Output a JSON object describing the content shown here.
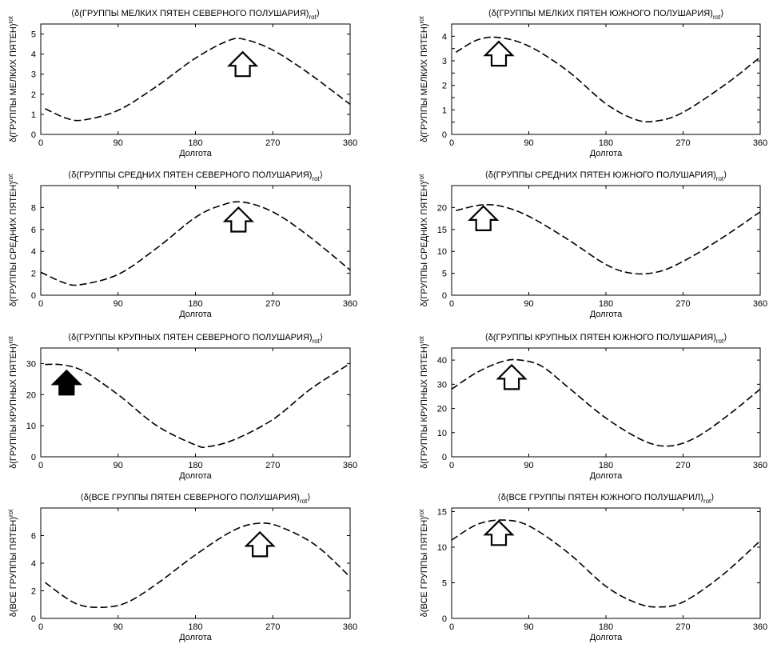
{
  "figure": {
    "xlabel_all": "Долгота"
  },
  "chart_data": [
    {
      "type": "line",
      "title": "⟨δ(ГРУППЫ МЕЛКИХ ПЯТЕН СЕВЕРНОГО ПОЛУШАРИЯ)",
      "title_sub": "rot",
      "xlabel": "Долгота",
      "ylabel": "δ(ГРУППЫ МЕЛКИХ ПЯТЕН)",
      "ylabel_sub": "rot",
      "xlim": [
        0,
        360
      ],
      "ylim": [
        0,
        5.5
      ],
      "xticks": [
        0,
        90,
        180,
        270,
        360
      ],
      "yticks": [
        0,
        1,
        2,
        3,
        4,
        5
      ],
      "x": [
        5,
        30,
        50,
        90,
        135,
        180,
        220,
        240,
        270,
        310,
        360
      ],
      "y": [
        1.28,
        0.8,
        0.72,
        1.2,
        2.4,
        3.8,
        4.7,
        4.7,
        4.2,
        3.1,
        1.5
      ],
      "arrow": {
        "x": 235,
        "y": 2.9,
        "filled": false
      }
    },
    {
      "type": "line",
      "title": "⟨δ(ГРУППЫ МЕЛКИХ ПЯТЕН ЮЖНОГО ПОЛУШАРИЯ)",
      "title_sub": "rot",
      "xlabel": "Долгота",
      "ylabel": "δ(ГРУППЫ МЕЛКИХ ПЯТЕН)",
      "ylabel_sub": "rot",
      "xlim": [
        0,
        360
      ],
      "ylim": [
        0,
        4.5
      ],
      "xticks": [
        0,
        90,
        180,
        270,
        360
      ],
      "yticks": [
        0,
        0.5,
        1,
        1.5,
        2,
        2.5,
        3,
        3.5,
        4
      ],
      "ytick_labels": [
        "0",
        "",
        "1",
        "",
        "2",
        "",
        "3",
        "",
        "4"
      ],
      "x": [
        5,
        30,
        55,
        90,
        135,
        180,
        215,
        240,
        270,
        320,
        360
      ],
      "y": [
        3.35,
        3.85,
        3.95,
        3.6,
        2.6,
        1.25,
        0.6,
        0.55,
        0.9,
        2.05,
        3.15
      ],
      "arrow": {
        "x": 55,
        "y": 2.8,
        "filled": false
      }
    },
    {
      "type": "line",
      "title": "⟨δ(ГРУППЫ СРЕДНИХ ПЯТЕН СЕВЕРНОГО ПОЛУШАРИЯ)",
      "title_sub": "rot",
      "xlabel": "Долгота",
      "ylabel": "δ(ГРУППЫ СРЕДНИХ ПЯТЕН)",
      "ylabel_sub": "rot",
      "xlim": [
        0,
        360
      ],
      "ylim": [
        0,
        10
      ],
      "xticks": [
        0,
        90,
        180,
        270,
        360
      ],
      "yticks": [
        0,
        2,
        4,
        6,
        8
      ],
      "x": [
        0,
        25,
        45,
        90,
        135,
        180,
        210,
        235,
        270,
        310,
        360
      ],
      "y": [
        2.1,
        1.2,
        0.95,
        1.9,
        4.3,
        7.1,
        8.2,
        8.5,
        7.6,
        5.5,
        2.3
      ],
      "arrow": {
        "x": 230,
        "y": 5.8,
        "filled": false
      }
    },
    {
      "type": "line",
      "title": "⟨δ(ГРУППЫ СРЕДНИХ ПЯТЕН ЮЖНОГО ПОЛУШАРИЯ)",
      "title_sub": "rot",
      "xlabel": "Долгота",
      "ylabel": "δ(ГРУППЫ СРЕДНИХ ПЯТЕН)",
      "ylabel_sub": "rot",
      "xlim": [
        0,
        360
      ],
      "ylim": [
        0,
        25
      ],
      "xticks": [
        0,
        90,
        180,
        270,
        360
      ],
      "yticks": [
        0,
        5,
        10,
        15,
        20
      ],
      "x": [
        5,
        35,
        60,
        90,
        135,
        180,
        210,
        240,
        270,
        315,
        360
      ],
      "y": [
        19.3,
        20.6,
        20.2,
        18,
        12.8,
        7,
        5,
        5.3,
        7.7,
        13,
        19
      ],
      "arrow": {
        "x": 37,
        "y": 14.8,
        "filled": false
      }
    },
    {
      "type": "line",
      "title": "⟨δ(ГРУППЫ КРУПНЫХ ПЯТЕН СЕВЕРНОГО ПОЛУШАРИЯ)",
      "title_sub": "rot",
      "xlabel": "Долгота",
      "ylabel": "δ(ГРУППЫ КРУПНЫХ ПЯТЕН)",
      "ylabel_sub": "rot",
      "xlim": [
        0,
        360
      ],
      "ylim": [
        0,
        35
      ],
      "xticks": [
        0,
        90,
        180,
        270,
        360
      ],
      "yticks": [
        0,
        10,
        20,
        30
      ],
      "x": [
        5,
        25,
        50,
        90,
        135,
        180,
        195,
        225,
        270,
        315,
        360
      ],
      "y": [
        29.7,
        29.6,
        27.5,
        20,
        10,
        3.8,
        3.3,
        5.5,
        12,
        22,
        30
      ],
      "arrow": {
        "x": 30,
        "y": 20,
        "filled": true
      }
    },
    {
      "type": "line",
      "title": "⟨δ(ГРУППЫ КРУПНЫХ ПЯТЕН ЮЖНОГО ПОЛУШАРИЯ)",
      "title_sub": "rot",
      "xlabel": "Долгота",
      "ylabel": "δ(ГРУППЫ КРУПНЫХ ПЯТЕН)",
      "ylabel_sub": "rot",
      "xlim": [
        0,
        360
      ],
      "ylim": [
        0,
        45
      ],
      "xticks": [
        0,
        90,
        180,
        270,
        360
      ],
      "yticks": [
        0,
        10,
        20,
        30,
        40
      ],
      "x": [
        0,
        30,
        60,
        80,
        105,
        135,
        180,
        225,
        255,
        285,
        320,
        360
      ],
      "y": [
        28,
        35,
        39.5,
        40,
        37.5,
        29,
        16,
        6.5,
        4.5,
        8,
        16.5,
        28
      ],
      "arrow": {
        "x": 70,
        "y": 28,
        "filled": false
      }
    },
    {
      "type": "line",
      "title": "⟨δ(ВСЕ ГРУППЫ ПЯТЕН СЕВЕРНОГО ПОЛУШАРИЯ)",
      "title_sub": "rot",
      "xlabel": "Долгота",
      "ylabel": "δ(ВСЕ ГРУППЫ ПЯТЕН)",
      "ylabel_sub": "rot",
      "xlim": [
        0,
        360
      ],
      "ylim": [
        0,
        8
      ],
      "xticks": [
        0,
        90,
        180,
        270,
        360
      ],
      "yticks": [
        0,
        2,
        4,
        6
      ],
      "x": [
        5,
        40,
        70,
        100,
        135,
        180,
        225,
        255,
        280,
        320,
        360
      ],
      "y": [
        2.6,
        1.1,
        0.8,
        1.15,
        2.5,
        4.6,
        6.4,
        6.9,
        6.6,
        5.3,
        3
      ],
      "arrow": {
        "x": 255,
        "y": 4.5,
        "filled": false
      }
    },
    {
      "type": "line",
      "title": "⟨δ(ВСЕ ГРУППЫ ПЯТЕН ЮЖНОГО ПОЛУШАРИЛ)",
      "title_sub": "rot",
      "xlabel": "Долгота",
      "ylabel": "δ(ВСЕ ГРУППЫ ПЯТЕН)",
      "ylabel_sub": "rot",
      "xlim": [
        0,
        360
      ],
      "ylim": [
        0,
        15.5
      ],
      "xticks": [
        0,
        90,
        180,
        270,
        360
      ],
      "yticks": [
        0,
        5,
        10,
        15
      ],
      "x": [
        0,
        30,
        60,
        90,
        135,
        180,
        215,
        240,
        270,
        315,
        360
      ],
      "y": [
        11,
        13.2,
        13.8,
        13,
        9.3,
        4.5,
        2.2,
        1.6,
        2.3,
        6,
        10.9
      ],
      "arrow": {
        "x": 55,
        "y": 10.3,
        "filled": false
      }
    }
  ]
}
